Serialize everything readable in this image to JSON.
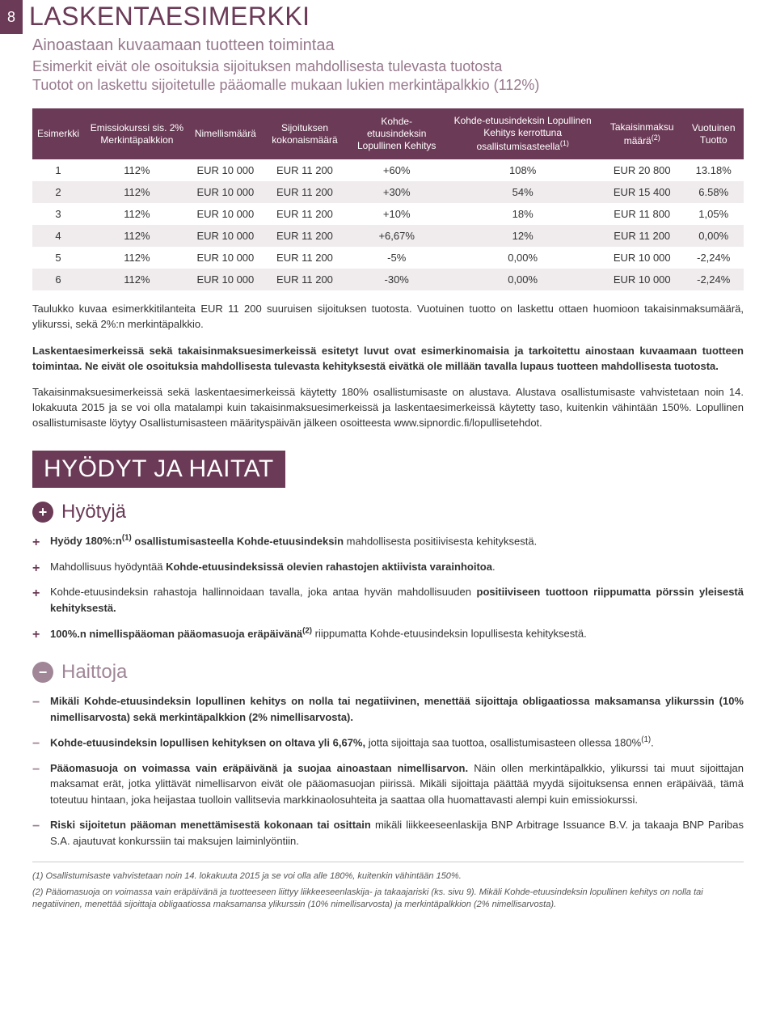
{
  "page_number": "8",
  "title": "LASKENTAESIMERKKI",
  "subtitle_1": "Ainoastaan kuvaamaan tuotteen toimintaa",
  "subtitle_2": "Esimerkit eivät ole osoituksia sijoituksen mahdollisesta tulevasta tuotosta",
  "subtitle_3": "Tuotot on laskettu sijoitetulle pääomalle mukaan lukien merkintäpalkkio (112%)",
  "table": {
    "headers": [
      "Esimerkki",
      "Emissiokurssi sis. 2% Merkintäpalkkion",
      "Nimellismäärä",
      "Sijoituksen kokonaismäärä",
      "Kohde-etuusindeksin Lopullinen Kehitys",
      "Kohde-etuusindeksin Lopullinen Kehitys kerrottuna osallistumisasteella",
      "Takaisinmaksu määrä",
      "Vuotuinen Tuotto"
    ],
    "header_sup": {
      "5": "(1)",
      "6": "(2)"
    },
    "rows": [
      [
        "1",
        "112%",
        "EUR 10 000",
        "EUR 11 200",
        "+60%",
        "108%",
        "EUR 20 800",
        "13.18%"
      ],
      [
        "2",
        "112%",
        "EUR 10 000",
        "EUR 11 200",
        "+30%",
        "54%",
        "EUR 15 400",
        "6.58%"
      ],
      [
        "3",
        "112%",
        "EUR 10 000",
        "EUR 11 200",
        "+10%",
        "18%",
        "EUR 11 800",
        "1,05%"
      ],
      [
        "4",
        "112%",
        "EUR 10 000",
        "EUR 11 200",
        "+6,67%",
        "12%",
        "EUR 11 200",
        "0,00%"
      ],
      [
        "5",
        "112%",
        "EUR 10 000",
        "EUR 11 200",
        "-5%",
        "0,00%",
        "EUR 10 000",
        "-2,24%"
      ],
      [
        "6",
        "112%",
        "EUR 10 000",
        "EUR 11 200",
        "-30%",
        "0,00%",
        "EUR 10 000",
        "-2,24%"
      ]
    ],
    "bg_odd": "#ffffff",
    "bg_even": "#f0ecee",
    "header_bg": "#6b3a56",
    "header_color": "#ffffff"
  },
  "para_1": "Taulukko kuvaa esimerkkitilanteita EUR 11 200 suuruisen sijoituksen tuotosta. Vuotuinen tuotto on laskettu ottaen huomioon takaisinmaksumäärä, ylikurssi, sekä 2%:n merkintäpalkkio.",
  "para_2_a": "Laskentaesimerkeissä sekä takaisinmaksuesimerkeissä esitetyt luvut ovat esimerkinomaisia ja tarkoitettu ainostaan kuvaamaan tuotteen toimintaa. Ne eivät ole osoituksia mahdollisesta tulevasta kehityksestä eivätkä ole millään tavalla lupaus tuotteen mahdollisesta tuotosta.",
  "para_3": "Takaisinmaksuesimerkeissä sekä laskentaesimerkeissä käytetty 180% osallistumisaste on alustava. Alustava osallistumisaste vahvistetaan noin 14. lokakuuta 2015 ja se voi olla matalampi kuin takaisinmaksuesimerkeissä ja laskentaesimerkeissä käytetty taso, kuitenkin vähintään 150%. Lopullinen osallistumisaste löytyy Osallistumisasteen määrityspäivän jälkeen osoitteesta www.sipnordic.fi/lopullisetehdot.",
  "banner_2": "HYÖDYT JA HAITAT",
  "benefits_label": "Hyötyjä",
  "benefits": [
    {
      "pre": "Hyödy 180%:n",
      "sup": "(1)",
      "mid": " osallistumisasteella Kohde-etuusindeksin",
      "rest": " mahdollisesta positiivisesta kehityksestä."
    },
    {
      "pre": "Mahdollisuus hyödyntää ",
      "bold": "Kohde-etuusindeksissä olevien rahastojen aktiivista varainhoitoa",
      "rest": "."
    },
    {
      "pre": "Kohde-etuusindeksin rahastoja hallinnoidaan tavalla, joka antaa hyvän mahdollisuuden ",
      "bold": "positiiviseen tuottoon riippumatta pörssin yleisestä kehityksestä.",
      "rest": ""
    },
    {
      "bold": "100%.n nimellispääoman pääomasuoja eräpäivänä",
      "sup": "(2)",
      "rest": " riippumatta Kohde-etuusindeksin lopullisesta kehityksestä."
    }
  ],
  "risks_label": "Haittoja",
  "risks": [
    {
      "bold": "Mikäli Kohde-etuusindeksin lopullinen kehitys on nolla tai negatiivinen, menettää sijoittaja obligaatiossa maksamansa ylikurssin (10% nimellisarvosta) sekä merkintäpalkkion (2% nimellisarvosta).",
      "rest": ""
    },
    {
      "bold": "Kohde-etuusindeksin lopullisen kehityksen on oltava yli 6,67%,",
      "rest": " jotta sijoittaja saa tuottoa, osallistumisasteen ollessa 180%",
      "sup": "(1)",
      "tail": "."
    },
    {
      "bold": "Pääomasuoja on voimassa vain eräpäivänä ja suojaa ainoastaan nimellisarvon.",
      "rest": " Näin ollen merkintäpalkkio, ylikurssi tai muut sijoittajan maksamat erät, jotka ylittävät nimellisarvon eivät ole pääomasuojan piirissä. Mikäli sijoittaja päättää myydä sijoituksensa ennen eräpäivää, tämä toteutuu hintaan, joka heijastaa tuolloin vallitsevia markkinaolosuhteita ja saattaa olla huomattavasti alempi kuin emissiokurssi."
    },
    {
      "bold": "Riski sijoitetun pääoman menettämisestä kokonaan tai osittain",
      "rest": " mikäli liikkeeseenlaskija BNP Arbitrage Issuance B.V. ja takaaja BNP Paribas S.A. ajautuvat konkurssiin tai maksujen laiminlyöntiin."
    }
  ],
  "footnote_1": "(1) Osallistumisaste vahvistetaan noin 14. lokakuuta 2015 ja se voi olla alle 180%, kuitenkin vähintään 150%.",
  "footnote_2": "(2) Pääomasuoja on voimassa vain eräpäivänä ja tuotteeseen liittyy liikkeeseenlaskija- ja takaajariski (ks. sivu 9). Mikäli Kohde-etuusindeksin lopullinen kehitys on nolla tai negatiivinen, menettää sijoittaja obligaatiossa maksamansa ylikurssin (10% nimellisarvosta) ja merkintäpalkkion (2% nimellisarvosta).",
  "colors": {
    "brand": "#6b3a56",
    "brand_light": "#a08697",
    "subtitle": "#97798c",
    "text": "#333333",
    "row_alt": "#f0ecee"
  }
}
